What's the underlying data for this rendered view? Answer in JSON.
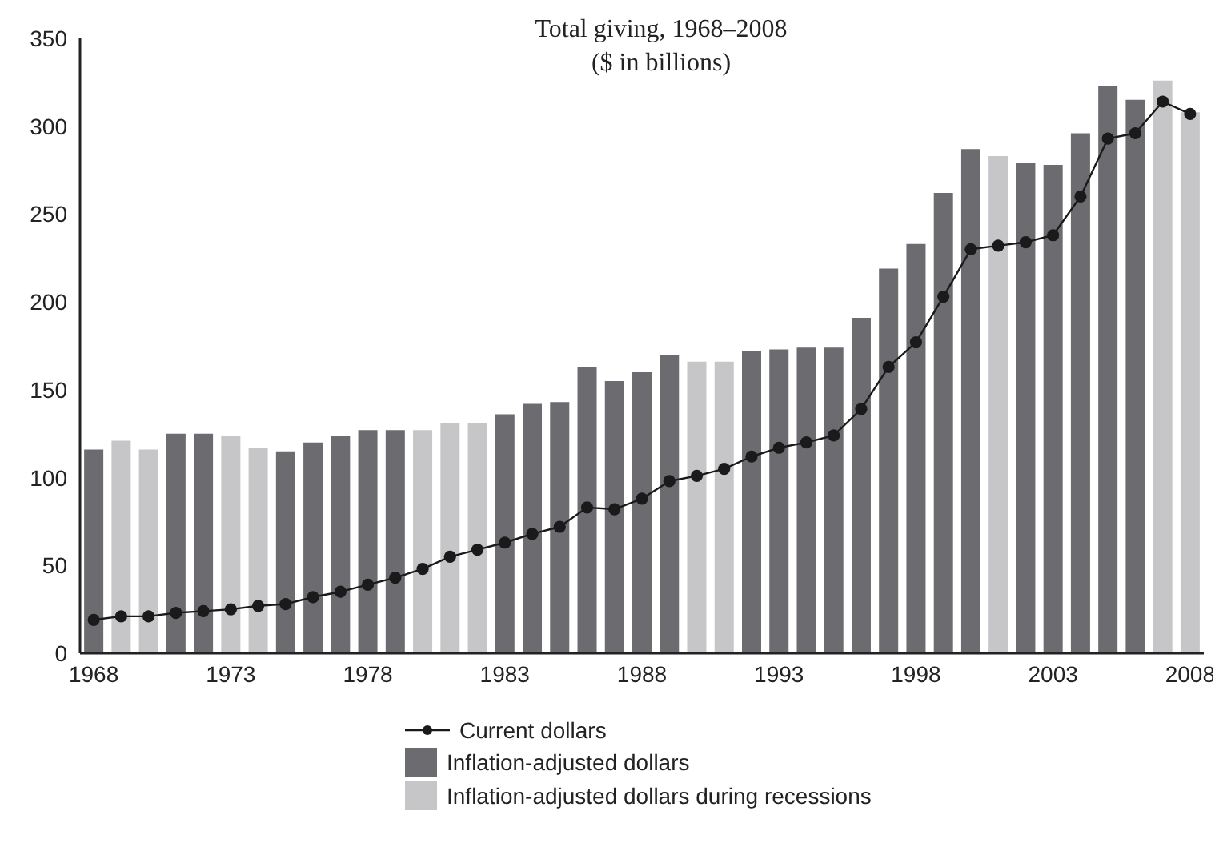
{
  "chart_data": {
    "type": "bar",
    "title": "Total giving, 1968–2008",
    "subtitle": "($ in billions)",
    "categories": [
      "1968",
      null,
      null,
      null,
      null,
      "1973",
      null,
      null,
      null,
      null,
      "1978",
      null,
      null,
      null,
      null,
      "1983",
      null,
      null,
      null,
      null,
      "1988",
      null,
      null,
      null,
      null,
      "1993",
      null,
      null,
      null,
      null,
      "1998",
      null,
      null,
      null,
      null,
      "2003",
      null,
      null,
      null,
      null,
      "2008"
    ],
    "stacked": true,
    "ylim": [
      0,
      350
    ],
    "yticks": [
      0,
      50,
      100,
      150,
      200,
      250,
      300,
      350
    ],
    "grid": false,
    "legend": "bottom",
    "marker": "circle",
    "line_style": "solid",
    "series": [
      {
        "name": "Inflation-adjusted dollars",
        "color": "#6b6b70",
        "values": [
          116,
          null,
          null,
          125,
          125,
          null,
          null,
          115,
          120,
          124,
          127,
          127,
          null,
          null,
          null,
          136,
          142,
          143,
          163,
          155,
          160,
          170,
          null,
          null,
          172,
          173,
          174,
          174,
          191,
          219,
          233,
          262,
          287,
          null,
          279,
          278,
          296,
          323,
          315,
          null,
          null
        ]
      },
      {
        "name": "Inflation-adjusted dollars during recessions",
        "color": "#c6c6c8",
        "values": [
          null,
          121,
          116,
          null,
          null,
          124,
          117,
          null,
          null,
          null,
          null,
          null,
          127,
          131,
          131,
          null,
          null,
          null,
          null,
          null,
          null,
          null,
          166,
          166,
          null,
          null,
          null,
          null,
          null,
          null,
          null,
          null,
          null,
          283,
          null,
          null,
          null,
          null,
          null,
          326,
          308
        ]
      },
      {
        "name": "Current dollars",
        "type": "line",
        "color": "#1a1a1a",
        "values": [
          19,
          21,
          21,
          23,
          24,
          25,
          27,
          28,
          32,
          35,
          39,
          43,
          48,
          55,
          59,
          63,
          68,
          72,
          83,
          82,
          88,
          98,
          101,
          105,
          112,
          117,
          120,
          124,
          139,
          163,
          177,
          203,
          230,
          232,
          234,
          238,
          260,
          293,
          296,
          314,
          307
        ]
      }
    ]
  }
}
